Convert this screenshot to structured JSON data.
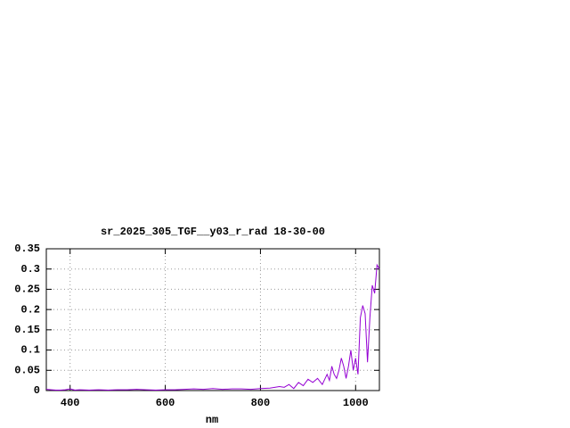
{
  "chart_data": {
    "type": "line",
    "title": "sr_2025_305_TGF__y03_r_rad 18-30-00",
    "x_label": "nm",
    "x": [
      350,
      360,
      370,
      380,
      390,
      400,
      410,
      420,
      440,
      460,
      480,
      500,
      520,
      540,
      560,
      580,
      600,
      620,
      640,
      660,
      680,
      700,
      720,
      740,
      760,
      780,
      800,
      820,
      840,
      850,
      860,
      870,
      880,
      890,
      900,
      910,
      920,
      930,
      940,
      945,
      950,
      955,
      960,
      965,
      970,
      975,
      980,
      985,
      990,
      995,
      1000,
      1005,
      1010,
      1015,
      1020,
      1025,
      1030,
      1035,
      1040,
      1045,
      1050
    ],
    "series": [
      {
        "name": "sr_2025_305_TGF__y03_r_rad",
        "color": "#9400d3",
        "values": [
          0.003,
          0.002,
          0.001,
          0.001,
          0.002,
          0.004,
          0.001,
          0.002,
          0.001,
          0.002,
          0.001,
          0.002,
          0.002,
          0.003,
          0.002,
          0.001,
          0.002,
          0.002,
          0.003,
          0.004,
          0.003,
          0.005,
          0.003,
          0.004,
          0.004,
          0.003,
          0.005,
          0.006,
          0.01,
          0.008,
          0.015,
          0.005,
          0.02,
          0.012,
          0.028,
          0.02,
          0.03,
          0.015,
          0.04,
          0.025,
          0.06,
          0.04,
          0.03,
          0.05,
          0.08,
          0.06,
          0.03,
          0.06,
          0.1,
          0.05,
          0.08,
          0.04,
          0.18,
          0.21,
          0.19,
          0.07,
          0.18,
          0.26,
          0.24,
          0.31,
          0.3
        ]
      }
    ],
    "xlim": [
      350,
      1050
    ],
    "xticks": [
      400,
      600,
      800,
      1000
    ],
    "ylim": [
      0,
      0.35
    ],
    "yticks": [
      0,
      0.05,
      0.1,
      0.15,
      0.2,
      0.25,
      0.3,
      0.35
    ],
    "grid": true
  }
}
